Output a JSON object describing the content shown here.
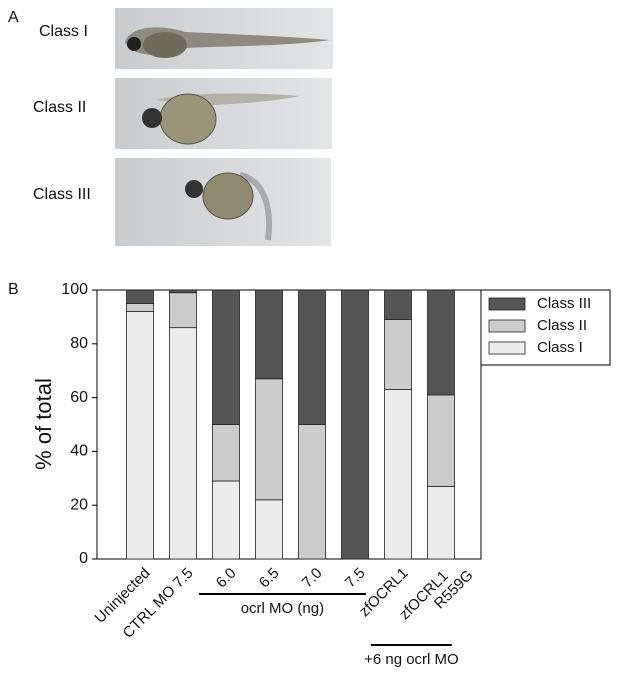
{
  "panel_a": {
    "label": "A",
    "images": [
      {
        "label": "Class I"
      },
      {
        "label": "Class II"
      },
      {
        "label": "Class III"
      }
    ]
  },
  "chart_data": {
    "type": "stacked_bar",
    "panel_label": "B",
    "y_label": "% of total",
    "categories": [
      "Uninjected",
      "CTRL MO 7.5",
      "6.0",
      "6.5",
      "7.0",
      "7.5",
      "zfOCRL1",
      "zfOCRL1 R559G"
    ],
    "series": [
      {
        "name": "Class I",
        "color": "#ececec",
        "values": [
          92,
          86,
          29,
          22,
          0,
          0,
          63,
          27
        ]
      },
      {
        "name": "Class II",
        "color": "#cccccc",
        "values": [
          3,
          13,
          21,
          45,
          50,
          0,
          26,
          34
        ]
      },
      {
        "name": "Class III",
        "color": "#555555",
        "values": [
          5,
          1,
          50,
          33,
          50,
          100,
          11,
          39
        ]
      }
    ],
    "ylim": [
      0,
      100
    ],
    "yticks": [
      0,
      20,
      40,
      60,
      80,
      100
    ],
    "legend": "upper right",
    "groups": [
      {
        "label": "ocrl MO (ng)",
        "from": 2,
        "to": 5
      },
      {
        "label": "+6 ng ocrl MO",
        "from": 6,
        "to": 7
      }
    ]
  }
}
